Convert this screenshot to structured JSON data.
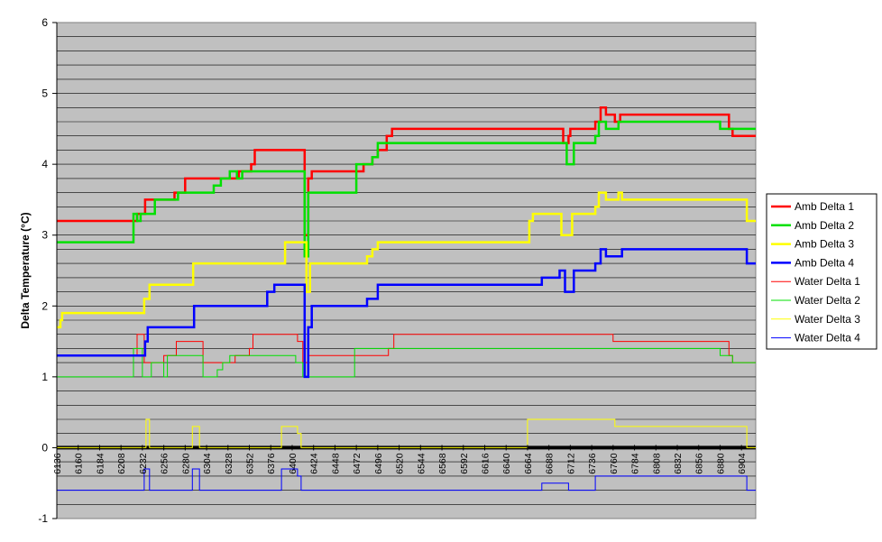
{
  "chart_data": {
    "type": "line",
    "title": "",
    "xlabel": "",
    "ylabel": "Delta Temperature (°C)",
    "ylim": [
      -1,
      6
    ],
    "xlim": [
      6136,
      6920
    ],
    "yticks": [
      -1,
      0,
      1,
      2,
      3,
      4,
      5,
      6
    ],
    "xticks": [
      6136,
      6160,
      6184,
      6208,
      6232,
      6256,
      6280,
      6304,
      6328,
      6352,
      6376,
      6400,
      6424,
      6448,
      6472,
      6496,
      6520,
      6544,
      6568,
      6592,
      6616,
      6640,
      6664,
      6688,
      6712,
      6736,
      6760,
      6784,
      6808,
      6832,
      6856,
      6880,
      6904
    ],
    "grid": "horizontal every 0.2",
    "legend_position": "right",
    "colors": {
      "plot_background": "#c0c0c0",
      "gridline": "#000000"
    },
    "series": [
      {
        "name": "Amb Delta 1",
        "color": "#ff0000",
        "width": 2.5,
        "points": [
          [
            6136,
            3.2
          ],
          [
            6226,
            3.2
          ],
          [
            6226,
            3.3
          ],
          [
            6235,
            3.3
          ],
          [
            6235,
            3.5
          ],
          [
            6268,
            3.5
          ],
          [
            6268,
            3.6
          ],
          [
            6280,
            3.6
          ],
          [
            6280,
            3.8
          ],
          [
            6340,
            3.8
          ],
          [
            6340,
            3.9
          ],
          [
            6354,
            3.9
          ],
          [
            6354,
            4.0
          ],
          [
            6358,
            4.0
          ],
          [
            6358,
            4.2
          ],
          [
            6414,
            4.2
          ],
          [
            6414,
            3.0
          ],
          [
            6418,
            3.0
          ],
          [
            6418,
            3.8
          ],
          [
            6422,
            3.8
          ],
          [
            6422,
            3.9
          ],
          [
            6480,
            3.9
          ],
          [
            6480,
            4.0
          ],
          [
            6490,
            4.0
          ],
          [
            6490,
            4.1
          ],
          [
            6496,
            4.1
          ],
          [
            6496,
            4.2
          ],
          [
            6506,
            4.2
          ],
          [
            6506,
            4.4
          ],
          [
            6512,
            4.4
          ],
          [
            6512,
            4.5
          ],
          [
            6704,
            4.5
          ],
          [
            6704,
            4.3
          ],
          [
            6710,
            4.3
          ],
          [
            6710,
            4.4
          ],
          [
            6712,
            4.4
          ],
          [
            6712,
            4.5
          ],
          [
            6740,
            4.5
          ],
          [
            6740,
            4.6
          ],
          [
            6746,
            4.6
          ],
          [
            6746,
            4.8
          ],
          [
            6752,
            4.8
          ],
          [
            6752,
            4.7
          ],
          [
            6762,
            4.7
          ],
          [
            6762,
            4.6
          ],
          [
            6768,
            4.6
          ],
          [
            6768,
            4.7
          ],
          [
            6890,
            4.7
          ],
          [
            6890,
            4.5
          ],
          [
            6894,
            4.5
          ],
          [
            6894,
            4.4
          ],
          [
            6920,
            4.4
          ]
        ]
      },
      {
        "name": "Amb Delta 2",
        "color": "#00e000",
        "width": 2.5,
        "points": [
          [
            6136,
            2.9
          ],
          [
            6222,
            2.9
          ],
          [
            6222,
            3.3
          ],
          [
            6226,
            3.3
          ],
          [
            6226,
            3.2
          ],
          [
            6230,
            3.2
          ],
          [
            6230,
            3.3
          ],
          [
            6246,
            3.3
          ],
          [
            6246,
            3.5
          ],
          [
            6272,
            3.5
          ],
          [
            6272,
            3.6
          ],
          [
            6312,
            3.6
          ],
          [
            6312,
            3.7
          ],
          [
            6320,
            3.7
          ],
          [
            6320,
            3.8
          ],
          [
            6330,
            3.8
          ],
          [
            6330,
            3.9
          ],
          [
            6338,
            3.9
          ],
          [
            6338,
            3.8
          ],
          [
            6344,
            3.8
          ],
          [
            6344,
            3.9
          ],
          [
            6414,
            3.9
          ],
          [
            6414,
            2.7
          ],
          [
            6418,
            2.7
          ],
          [
            6418,
            3.6
          ],
          [
            6472,
            3.6
          ],
          [
            6472,
            4.0
          ],
          [
            6490,
            4.0
          ],
          [
            6490,
            4.1
          ],
          [
            6496,
            4.1
          ],
          [
            6496,
            4.3
          ],
          [
            6708,
            4.3
          ],
          [
            6708,
            4.0
          ],
          [
            6716,
            4.0
          ],
          [
            6716,
            4.3
          ],
          [
            6740,
            4.3
          ],
          [
            6740,
            4.4
          ],
          [
            6744,
            4.4
          ],
          [
            6744,
            4.6
          ],
          [
            6752,
            4.6
          ],
          [
            6752,
            4.5
          ],
          [
            6766,
            4.5
          ],
          [
            6766,
            4.6
          ],
          [
            6880,
            4.6
          ],
          [
            6880,
            4.5
          ],
          [
            6920,
            4.5
          ]
        ]
      },
      {
        "name": "Amb Delta 3",
        "color": "#ffff00",
        "width": 2.5,
        "points": [
          [
            6136,
            1.7
          ],
          [
            6140,
            1.7
          ],
          [
            6140,
            1.8
          ],
          [
            6142,
            1.8
          ],
          [
            6142,
            1.9
          ],
          [
            6234,
            1.9
          ],
          [
            6234,
            2.1
          ],
          [
            6240,
            2.1
          ],
          [
            6240,
            2.3
          ],
          [
            6289,
            2.3
          ],
          [
            6289,
            2.6
          ],
          [
            6392,
            2.6
          ],
          [
            6392,
            2.9
          ],
          [
            6416,
            2.9
          ],
          [
            6416,
            2.2
          ],
          [
            6420,
            2.2
          ],
          [
            6420,
            2.6
          ],
          [
            6484,
            2.6
          ],
          [
            6484,
            2.7
          ],
          [
            6490,
            2.7
          ],
          [
            6490,
            2.8
          ],
          [
            6496,
            2.8
          ],
          [
            6496,
            2.9
          ],
          [
            6666,
            2.9
          ],
          [
            6666,
            3.2
          ],
          [
            6670,
            3.2
          ],
          [
            6670,
            3.3
          ],
          [
            6702,
            3.3
          ],
          [
            6702,
            3.0
          ],
          [
            6714,
            3.0
          ],
          [
            6714,
            3.3
          ],
          [
            6740,
            3.3
          ],
          [
            6740,
            3.4
          ],
          [
            6744,
            3.4
          ],
          [
            6744,
            3.6
          ],
          [
            6752,
            3.6
          ],
          [
            6752,
            3.5
          ],
          [
            6766,
            3.5
          ],
          [
            6766,
            3.6
          ],
          [
            6770,
            3.6
          ],
          [
            6770,
            3.5
          ],
          [
            6910,
            3.5
          ],
          [
            6910,
            3.2
          ],
          [
            6920,
            3.2
          ]
        ]
      },
      {
        "name": "Amb Delta 4",
        "color": "#0000ff",
        "width": 2.5,
        "points": [
          [
            6136,
            1.3
          ],
          [
            6235,
            1.3
          ],
          [
            6235,
            1.5
          ],
          [
            6238,
            1.5
          ],
          [
            6238,
            1.7
          ],
          [
            6290,
            1.7
          ],
          [
            6290,
            2.0
          ],
          [
            6372,
            2.0
          ],
          [
            6372,
            2.2
          ],
          [
            6380,
            2.2
          ],
          [
            6380,
            2.3
          ],
          [
            6414,
            2.3
          ],
          [
            6414,
            1.0
          ],
          [
            6418,
            1.0
          ],
          [
            6418,
            1.7
          ],
          [
            6422,
            1.7
          ],
          [
            6422,
            2.0
          ],
          [
            6484,
            2.0
          ],
          [
            6484,
            2.1
          ],
          [
            6496,
            2.1
          ],
          [
            6496,
            2.3
          ],
          [
            6680,
            2.3
          ],
          [
            6680,
            2.4
          ],
          [
            6700,
            2.4
          ],
          [
            6700,
            2.5
          ],
          [
            6706,
            2.5
          ],
          [
            6706,
            2.2
          ],
          [
            6716,
            2.2
          ],
          [
            6716,
            2.5
          ],
          [
            6740,
            2.5
          ],
          [
            6740,
            2.6
          ],
          [
            6746,
            2.6
          ],
          [
            6746,
            2.8
          ],
          [
            6752,
            2.8
          ],
          [
            6752,
            2.7
          ],
          [
            6770,
            2.7
          ],
          [
            6770,
            2.8
          ],
          [
            6910,
            2.8
          ],
          [
            6910,
            2.6
          ],
          [
            6920,
            2.6
          ]
        ]
      },
      {
        "name": "Water Delta 1",
        "color": "#ff0000",
        "width": 1,
        "points": [
          [
            6136,
            1.3
          ],
          [
            6226,
            1.3
          ],
          [
            6226,
            1.6
          ],
          [
            6234,
            1.6
          ],
          [
            6234,
            1.2
          ],
          [
            6256,
            1.2
          ],
          [
            6256,
            1.3
          ],
          [
            6270,
            1.3
          ],
          [
            6270,
            1.5
          ],
          [
            6300,
            1.5
          ],
          [
            6300,
            1.2
          ],
          [
            6336,
            1.2
          ],
          [
            6336,
            1.3
          ],
          [
            6352,
            1.3
          ],
          [
            6352,
            1.4
          ],
          [
            6356,
            1.4
          ],
          [
            6356,
            1.6
          ],
          [
            6406,
            1.6
          ],
          [
            6406,
            1.5
          ],
          [
            6412,
            1.5
          ],
          [
            6412,
            1.2
          ],
          [
            6418,
            1.2
          ],
          [
            6418,
            1.3
          ],
          [
            6508,
            1.3
          ],
          [
            6508,
            1.4
          ],
          [
            6514,
            1.4
          ],
          [
            6514,
            1.6
          ],
          [
            6760,
            1.6
          ],
          [
            6760,
            1.5
          ],
          [
            6890,
            1.5
          ],
          [
            6890,
            1.3
          ],
          [
            6894,
            1.3
          ],
          [
            6894,
            1.2
          ],
          [
            6920,
            1.2
          ]
        ]
      },
      {
        "name": "Water Delta 2",
        "color": "#00e000",
        "width": 1,
        "points": [
          [
            6136,
            1.0
          ],
          [
            6222,
            1.0
          ],
          [
            6222,
            1.4
          ],
          [
            6232,
            1.4
          ],
          [
            6232,
            1.0
          ],
          [
            6242,
            1.0
          ],
          [
            6242,
            1.2
          ],
          [
            6256,
            1.2
          ],
          [
            6256,
            1.0
          ],
          [
            6260,
            1.0
          ],
          [
            6260,
            1.3
          ],
          [
            6300,
            1.3
          ],
          [
            6300,
            1.0
          ],
          [
            6316,
            1.0
          ],
          [
            6316,
            1.1
          ],
          [
            6322,
            1.1
          ],
          [
            6322,
            1.2
          ],
          [
            6330,
            1.2
          ],
          [
            6330,
            1.3
          ],
          [
            6404,
            1.3
          ],
          [
            6404,
            1.2
          ],
          [
            6412,
            1.2
          ],
          [
            6412,
            1.0
          ],
          [
            6470,
            1.0
          ],
          [
            6470,
            1.4
          ],
          [
            6880,
            1.4
          ],
          [
            6880,
            1.3
          ],
          [
            6894,
            1.3
          ],
          [
            6894,
            1.2
          ],
          [
            6920,
            1.2
          ]
        ]
      },
      {
        "name": "Water Delta 3",
        "color": "#ffff00",
        "width": 1,
        "points": [
          [
            6136,
            0.0
          ],
          [
            6236,
            0.0
          ],
          [
            6236,
            0.4
          ],
          [
            6240,
            0.4
          ],
          [
            6240,
            0.0
          ],
          [
            6288,
            0.0
          ],
          [
            6288,
            0.3
          ],
          [
            6296,
            0.3
          ],
          [
            6296,
            0.0
          ],
          [
            6388,
            0.0
          ],
          [
            6388,
            0.3
          ],
          [
            6406,
            0.3
          ],
          [
            6406,
            0.2
          ],
          [
            6410,
            0.2
          ],
          [
            6410,
            0.0
          ],
          [
            6664,
            0.0
          ],
          [
            6664,
            0.4
          ],
          [
            6762,
            0.4
          ],
          [
            6762,
            0.3
          ],
          [
            6910,
            0.3
          ],
          [
            6910,
            0.0
          ],
          [
            6920,
            0.0
          ]
        ]
      },
      {
        "name": "Water Delta 4",
        "color": "#0000ff",
        "width": 1,
        "points": [
          [
            6136,
            -0.6
          ],
          [
            6234,
            -0.6
          ],
          [
            6234,
            -0.3
          ],
          [
            6240,
            -0.3
          ],
          [
            6240,
            -0.6
          ],
          [
            6288,
            -0.6
          ],
          [
            6288,
            -0.3
          ],
          [
            6296,
            -0.3
          ],
          [
            6296,
            -0.6
          ],
          [
            6388,
            -0.6
          ],
          [
            6388,
            -0.3
          ],
          [
            6406,
            -0.3
          ],
          [
            6406,
            -0.4
          ],
          [
            6410,
            -0.4
          ],
          [
            6410,
            -0.6
          ],
          [
            6680,
            -0.6
          ],
          [
            6680,
            -0.5
          ],
          [
            6710,
            -0.5
          ],
          [
            6710,
            -0.6
          ],
          [
            6740,
            -0.6
          ],
          [
            6740,
            -0.4
          ],
          [
            6910,
            -0.4
          ],
          [
            6910,
            -0.6
          ],
          [
            6920,
            -0.6
          ]
        ]
      }
    ]
  }
}
